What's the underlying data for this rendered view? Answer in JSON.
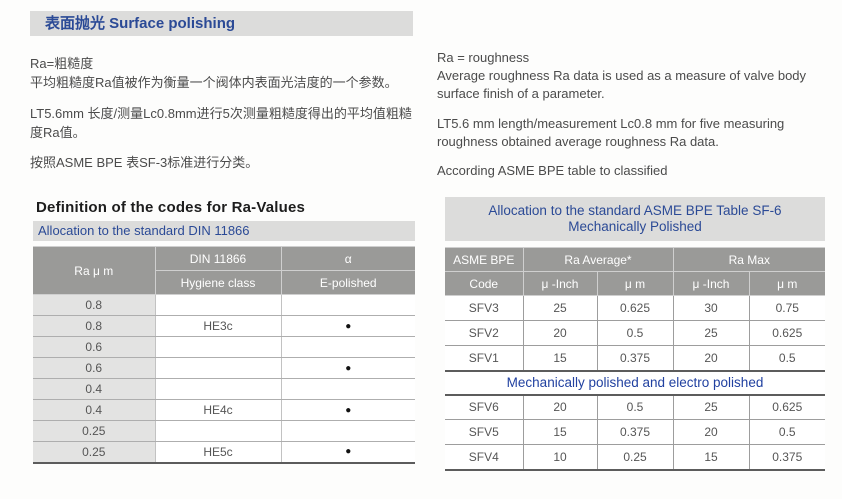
{
  "title": "表面抛光 Surface polishing",
  "intro_cn": {
    "line1": "Ra=粗糙度",
    "line2": "平均粗糙度Ra值被作为衡量一个阀体内表面光洁度的一个参数。",
    "line3": "LT5.6mm 长度/测量Lc0.8mm进行5次测量粗糙度得出的平均值粗糙度Ra值。",
    "line4": "按照ASME BPE 表SF-3标准进行分类。"
  },
  "intro_en": {
    "line1": "Ra = roughness",
    "line2": "Average roughness Ra data is used as a measure of valve body surface finish of a parameter.",
    "line3": "LT5.6 mm length/measurement Lc0.8 mm for five measuring roughness obtained average roughness Ra data.",
    "line4": "According ASME BPE table to classified"
  },
  "din_table": {
    "heading": "Definition of the codes for Ra-Values",
    "subheading": "Allocation to the standard DIN 11866",
    "col_ra": "Ra μ m",
    "col_group": "DIN 11866",
    "col_hygiene": "Hygiene class",
    "col_alpha": "α",
    "col_epolished": "E-polished",
    "rows": [
      {
        "ra": "0.8",
        "hygiene": "",
        "dot": ""
      },
      {
        "ra": "0.8",
        "hygiene": "HE3c",
        "dot": "●"
      },
      {
        "ra": "0.6",
        "hygiene": "",
        "dot": ""
      },
      {
        "ra": "0.6",
        "hygiene": "",
        "dot": "●"
      },
      {
        "ra": "0.4",
        "hygiene": "",
        "dot": ""
      },
      {
        "ra": "0.4",
        "hygiene": "HE4c",
        "dot": "●"
      },
      {
        "ra": "0.25",
        "hygiene": "",
        "dot": ""
      },
      {
        "ra": "0.25",
        "hygiene": "HE5c",
        "dot": "●"
      }
    ]
  },
  "asme_table": {
    "heading_line1": "Allocation to the standard ASME BPE Table SF-6",
    "heading_line2": "Mechanically Polished",
    "col_code_top": "ASME BPE",
    "col_code_bottom": "Code",
    "group_avg": "Ra Average*",
    "group_max": "Ra Max",
    "sub_uinch": "μ -Inch",
    "sub_um": "μ m",
    "section2_label": "Mechanically polished and electro polished",
    "rows_mp": [
      {
        "code": "SFV3",
        "avg_uinch": "25",
        "avg_um": "0.625",
        "max_uinch": "30",
        "max_um": "0.75"
      },
      {
        "code": "SFV2",
        "avg_uinch": "20",
        "avg_um": "0.5",
        "max_uinch": "25",
        "max_um": "0.625"
      },
      {
        "code": "SFV1",
        "avg_uinch": "15",
        "avg_um": "0.375",
        "max_uinch": "20",
        "max_um": "0.5"
      }
    ],
    "rows_mpep": [
      {
        "code": "SFV6",
        "avg_uinch": "20",
        "avg_um": "0.5",
        "max_uinch": "25",
        "max_um": "0.625"
      },
      {
        "code": "SFV5",
        "avg_uinch": "15",
        "avg_um": "0.375",
        "max_uinch": "20",
        "max_um": "0.5"
      },
      {
        "code": "SFV4",
        "avg_uinch": "10",
        "avg_um": "0.25",
        "max_uinch": "15",
        "max_um": "0.375"
      }
    ]
  },
  "colors": {
    "accent_blue": "#2b4a96",
    "bar_gray": "#dcdcdb",
    "header_gray": "#9a9a98",
    "cell_gray": "#e3e3e2",
    "text_dark": "#4b4b4b"
  }
}
